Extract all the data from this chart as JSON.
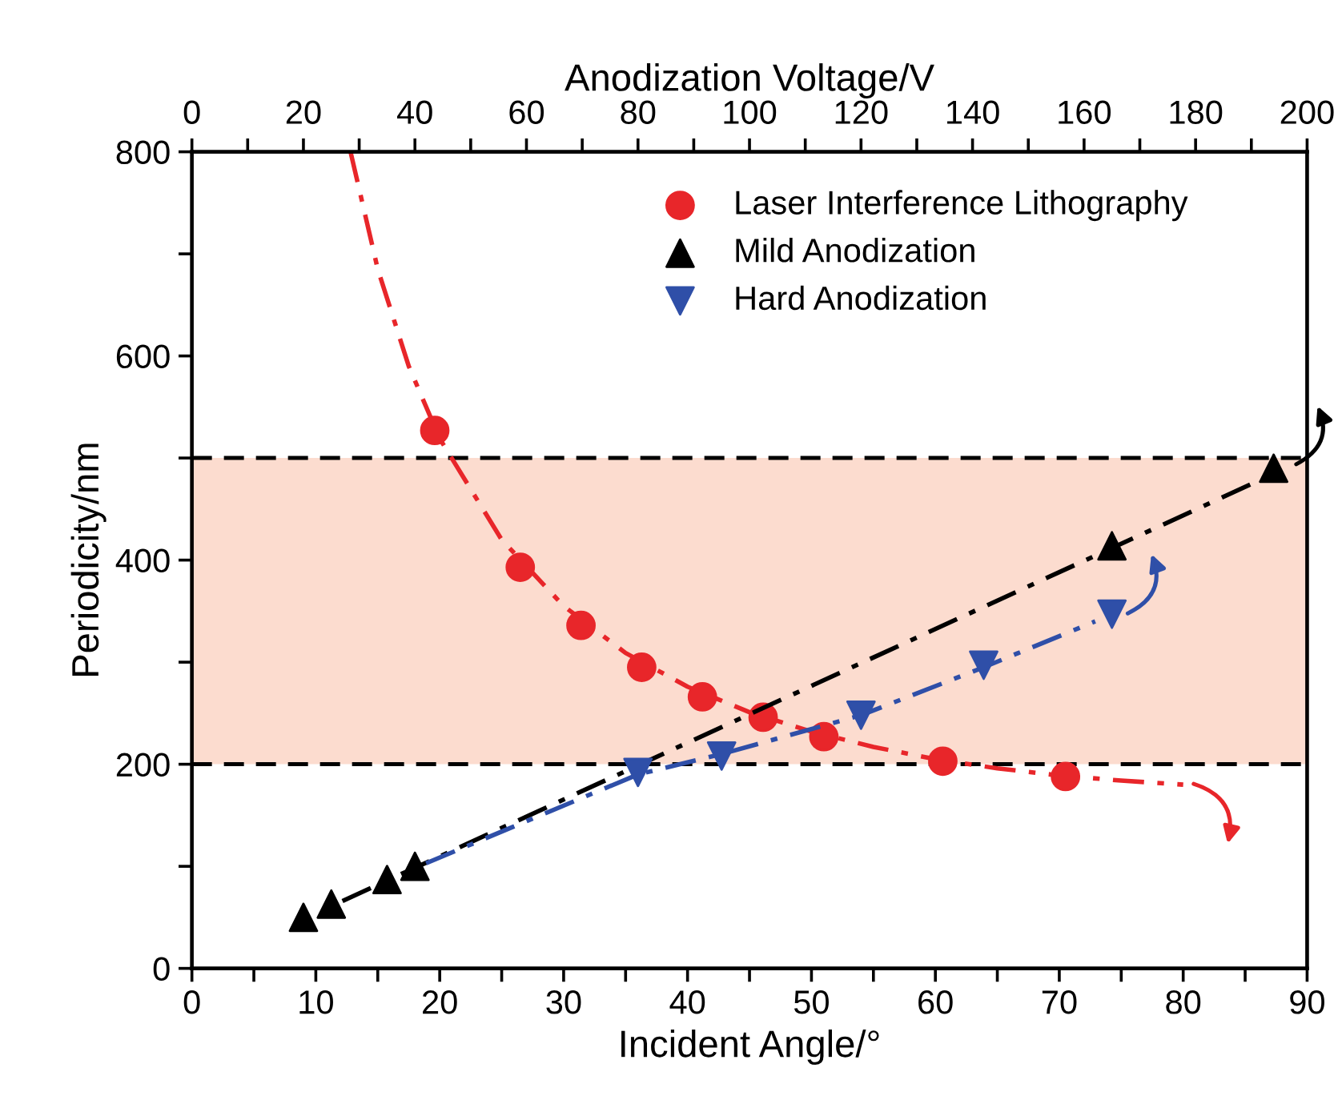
{
  "chart_data": {
    "type": "scatter",
    "xlabel": "Incident Angle/°",
    "ylabel": "Periodicity/nm",
    "x2label": "Anodization Voltage/V",
    "xlim": [
      0,
      90
    ],
    "xticks": [
      0,
      {
        "value": 5,
        "label": null
      },
      10,
      {
        "value": 15,
        "label": null
      },
      20,
      {
        "value": 25,
        "label": null
      },
      30,
      {
        "value": 35,
        "label": null
      },
      40,
      {
        "value": 45,
        "label": null
      },
      50,
      {
        "value": 55,
        "label": null
      },
      60,
      {
        "value": 65,
        "label": null
      },
      70,
      {
        "value": 75,
        "label": null
      },
      80,
      {
        "value": 85,
        "label": null
      },
      90
    ],
    "x2lim": [
      0,
      200
    ],
    "x2ticks": [
      0,
      {
        "value": 10,
        "label": null
      },
      20,
      {
        "value": 30,
        "label": null
      },
      40,
      {
        "value": 50,
        "label": null
      },
      60,
      {
        "value": 70,
        "label": null
      },
      80,
      {
        "value": 90,
        "label": null
      },
      100,
      {
        "value": 110,
        "label": null
      },
      120,
      {
        "value": 130,
        "label": null
      },
      140,
      {
        "value": 150,
        "label": null
      },
      160,
      {
        "value": 170,
        "label": null
      },
      180,
      {
        "value": 190,
        "label": null
      },
      200
    ],
    "ylim": [
      0,
      800
    ],
    "yticks": [
      0,
      {
        "value": 100,
        "label": null
      },
      200,
      {
        "value": 300,
        "label": null
      },
      400,
      {
        "value": 500,
        "label": null
      },
      600,
      {
        "value": 700,
        "label": null
      },
      800
    ],
    "grid": false,
    "legend": "top right",
    "bands": [
      {
        "axis": "y",
        "from": 200,
        "to": 500,
        "color": "#fcdccf"
      }
    ],
    "ref_lines": [
      {
        "axis": "y",
        "value": 200,
        "color": "#000000",
        "line_style": "dashed"
      },
      {
        "axis": "y",
        "value": 500,
        "color": "#000000",
        "line_style": "dashed"
      }
    ],
    "series": [
      {
        "type": "line",
        "color": "#e8262a",
        "line_style": "dashdot",
        "marker": "none",
        "x": [
          12.8,
          15,
          17.5,
          20,
          25,
          30,
          35,
          40,
          45,
          50,
          55,
          60,
          65,
          70,
          75,
          80
        ],
        "values": [
          800,
          685,
          590,
          519,
          420,
          355,
          309,
          276,
          251,
          232,
          217,
          205,
          196,
          189,
          184,
          180
        ]
      },
      {
        "type": "line",
        "color": "#000000",
        "line_style": "dashdot",
        "marker": "none",
        "axis": "x2",
        "x": [
          27,
          195
        ],
        "values": [
          66,
          487
        ]
      },
      {
        "type": "line",
        "color": "#2f4fa8",
        "line_style": "dashdot",
        "marker": "none",
        "axis": "x2",
        "x": [
          42,
          80,
          95,
          120,
          142,
          162
        ],
        "values": [
          103,
          190,
          210,
          248,
          295,
          340
        ]
      },
      {
        "name": "Laser Interference Lithography",
        "color": "#e8262a",
        "marker": "circle",
        "x": [
          19.6,
          26.5,
          31.4,
          36.3,
          41.2,
          46.1,
          51.0,
          60.6,
          70.5
        ],
        "values": [
          527,
          393,
          336,
          295,
          266,
          246,
          227,
          203,
          188
        ]
      },
      {
        "name": "Mild Anodization",
        "color": "#000000",
        "marker": "triangle",
        "axis": "x2",
        "x": [
          20,
          25,
          35,
          40,
          165,
          194
        ],
        "values": [
          50,
          63,
          87,
          100,
          414,
          490
        ]
      },
      {
        "name": "Hard Anodization",
        "color": "#2f4fa8",
        "marker": "triangle_down",
        "axis": "x2",
        "x": [
          80,
          95,
          120,
          142,
          165
        ],
        "values": [
          192,
          208,
          248,
          297,
          347
        ]
      }
    ]
  }
}
